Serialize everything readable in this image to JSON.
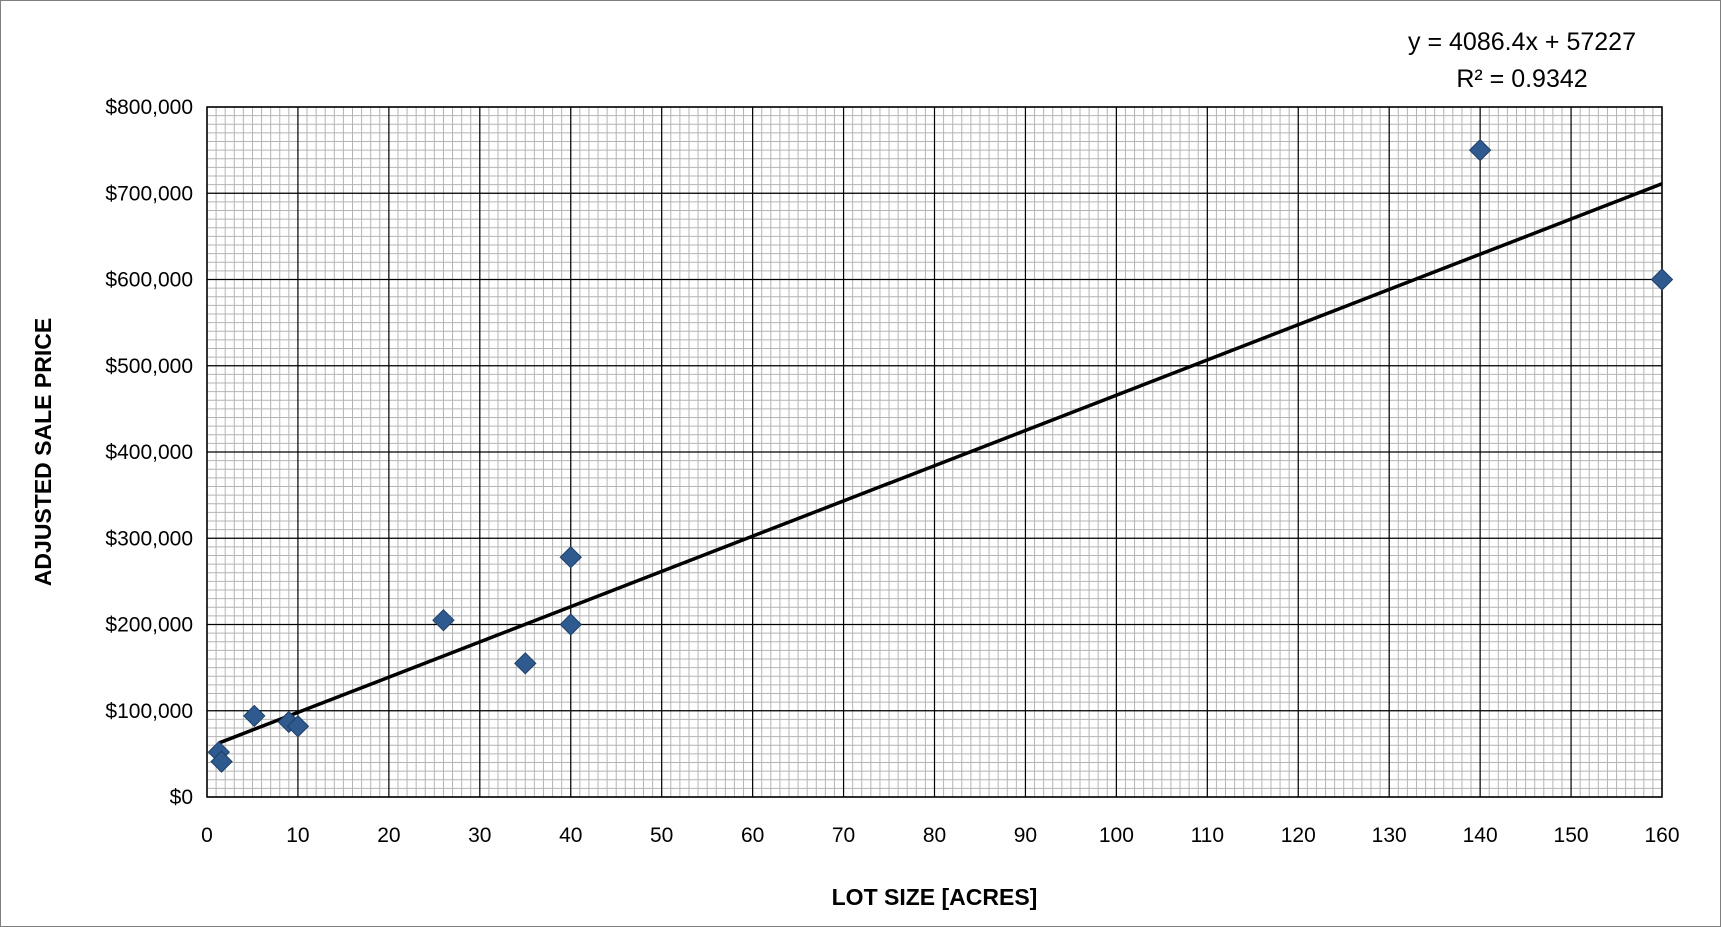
{
  "chart_data": {
    "type": "scatter",
    "xlabel": "LOT SIZE [ACRES]",
    "ylabel": "ADJUSTED SALE PRICE",
    "xlim": [
      0,
      160
    ],
    "ylim": [
      0,
      800000
    ],
    "x_ticks": [
      "0",
      "10",
      "20",
      "30",
      "40",
      "50",
      "60",
      "70",
      "80",
      "90",
      "100",
      "110",
      "120",
      "130",
      "140",
      "150",
      "160"
    ],
    "y_ticks": [
      "$0",
      "$100,000",
      "$200,000",
      "$300,000",
      "$400,000",
      "$500,000",
      "$600,000",
      "$700,000",
      "$800,000"
    ],
    "grid": true,
    "marker": "diamond",
    "marker_color": "#2e5a8f",
    "points": [
      {
        "x": 1.3,
        "y": 52000
      },
      {
        "x": 1.6,
        "y": 41000
      },
      {
        "x": 5.2,
        "y": 94000
      },
      {
        "x": 9.0,
        "y": 87000
      },
      {
        "x": 10.0,
        "y": 82000
      },
      {
        "x": 26.0,
        "y": 205000
      },
      {
        "x": 35.0,
        "y": 155000
      },
      {
        "x": 40.0,
        "y": 278000
      },
      {
        "x": 40.0,
        "y": 200000
      },
      {
        "x": 140.0,
        "y": 750000
      },
      {
        "x": 160.0,
        "y": 600000
      }
    ],
    "trendline": {
      "slope": 4086.4,
      "intercept": 57227,
      "x_range": [
        1.3,
        160
      ],
      "color": "#000000",
      "equation_label": "y = 4086.4x + 57227",
      "r2_label": "R² = 0.9342"
    }
  }
}
